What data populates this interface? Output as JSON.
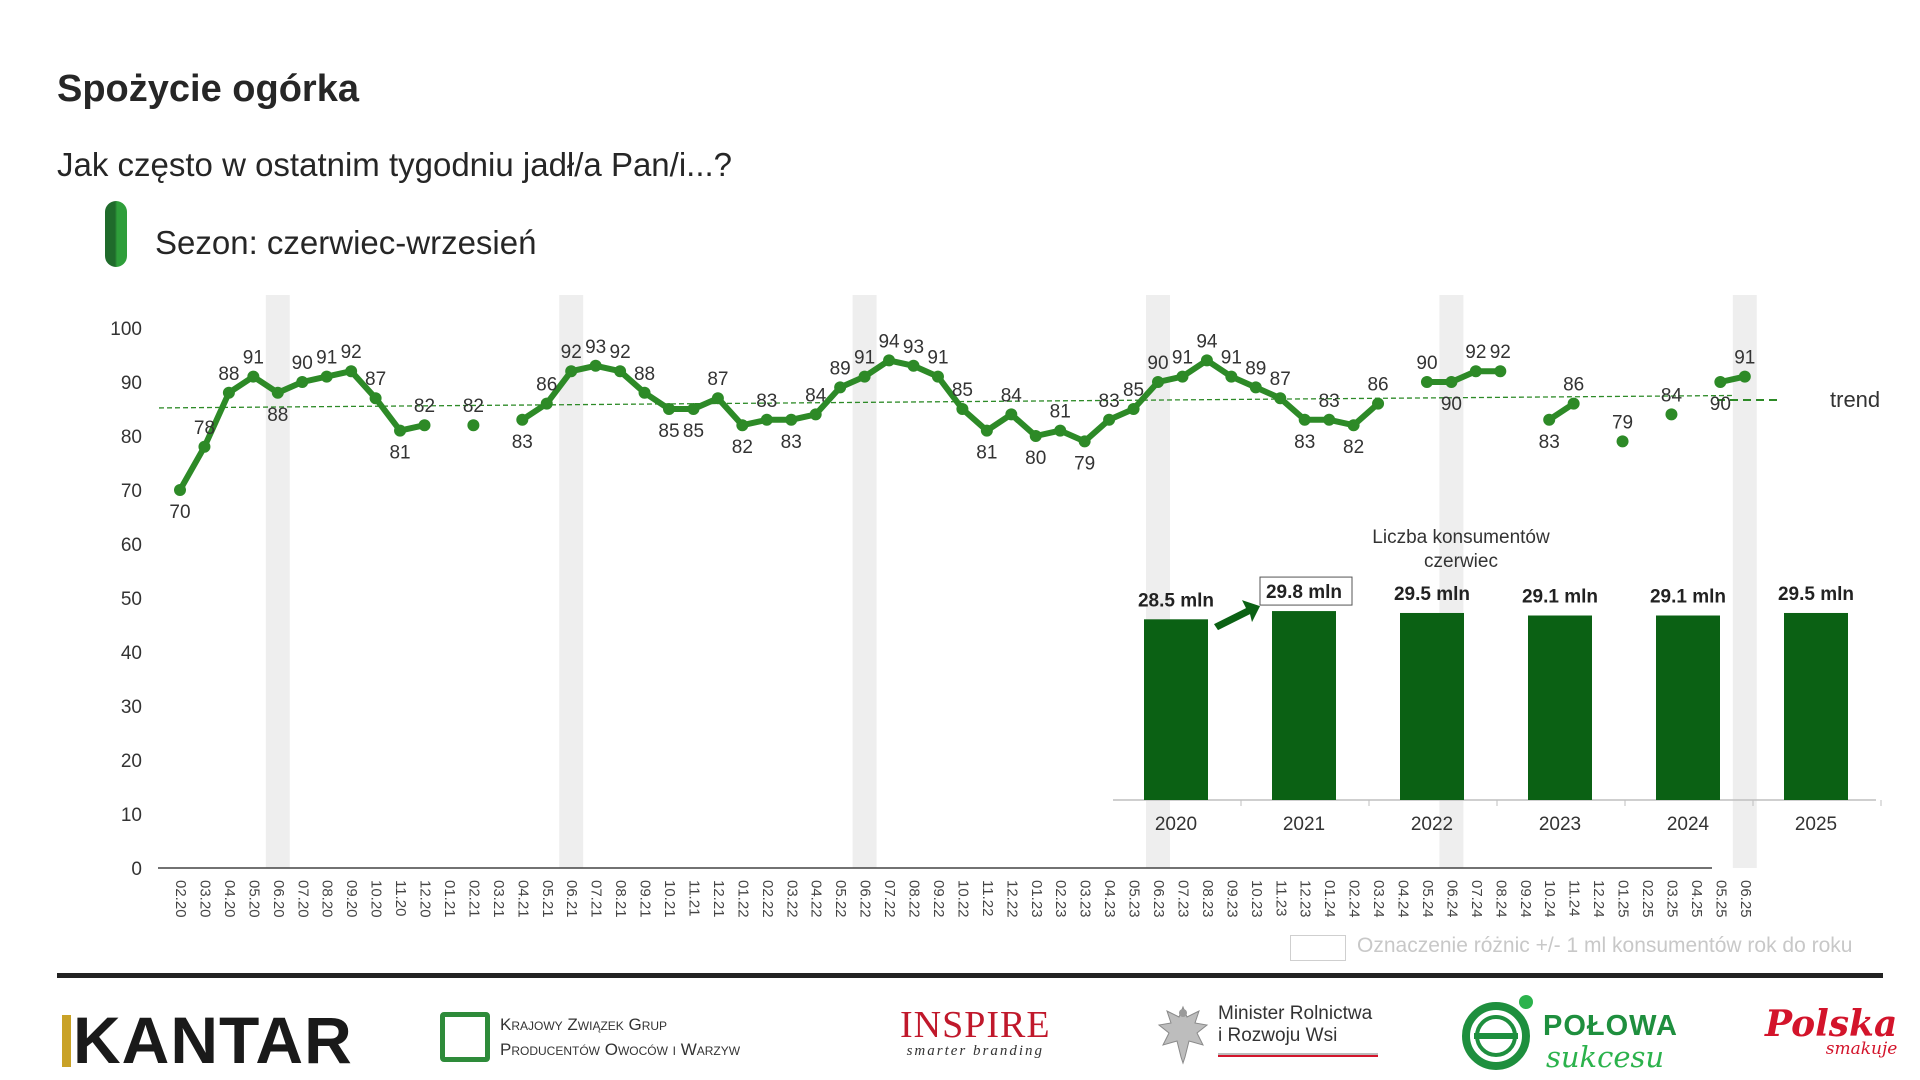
{
  "header": {
    "title": "Spożycie ogórka",
    "subtitle": "Jak często w ostatnim tygodniu jadł/a Pan/i...?",
    "season_label": "Sezon: czerwiec-wrzesień"
  },
  "chart_data": [
    {
      "type": "line",
      "y_ticks": [
        "0",
        "10",
        "20",
        "30",
        "40",
        "50",
        "60",
        "70",
        "80",
        "90",
        "100"
      ],
      "ylim": [
        0,
        100
      ],
      "grid": false,
      "categories": [
        "02.20",
        "03.20",
        "04.20",
        "05.20",
        "06.20",
        "07.20",
        "08.20",
        "09.20",
        "10.20",
        "11.20",
        "12.20",
        "01.21",
        "02.21",
        "03.21",
        "04.21",
        "05.21",
        "06.21",
        "07.21",
        "08.21",
        "09.21",
        "10.21",
        "11.21",
        "12.21",
        "01.22",
        "02.22",
        "03.22",
        "04.22",
        "05.22",
        "06.22",
        "07.22",
        "08.22",
        "09.22",
        "10.22",
        "11.22",
        "12.22",
        "01.23",
        "02.23",
        "03.23",
        "04.23",
        "05.23",
        "06.23",
        "07.23",
        "08.23",
        "09.23",
        "10.23",
        "11.23",
        "12.23",
        "01.24",
        "02.24",
        "03.24",
        "04.24",
        "05.24",
        "06.24",
        "07.24",
        "08.24",
        "09.24",
        "10.24",
        "11.24",
        "12.24",
        "01.25",
        "02.25",
        "03.25",
        "04.25",
        "05.25",
        "06.25"
      ],
      "values": [
        70,
        78,
        88,
        91,
        88,
        90,
        91,
        92,
        87,
        81,
        82,
        null,
        82,
        null,
        83,
        86,
        92,
        93,
        92,
        88,
        85,
        85,
        87,
        82,
        83,
        83,
        84,
        89,
        91,
        94,
        93,
        91,
        85,
        81,
        84,
        80,
        81,
        79,
        83,
        85,
        90,
        91,
        94,
        91,
        89,
        87,
        83,
        83,
        82,
        86,
        null,
        90,
        90,
        92,
        92,
        null,
        83,
        86,
        null,
        79,
        null,
        84,
        null,
        90,
        91
      ],
      "season_shading": [
        "06.20",
        "06.21",
        "06.22",
        "06.23",
        "06.24",
        "06.25"
      ],
      "trend": {
        "label": "trend",
        "start": 85.2,
        "end": 87.5
      },
      "series": [
        {
          "color": "#2d8a27"
        }
      ]
    },
    {
      "type": "bar",
      "title": "Liczba konsumentów\nczerwiec",
      "title_lines": [
        "Liczba konsumentów",
        "czerwiec"
      ],
      "categories": [
        "2020",
        "2021",
        "2022",
        "2023",
        "2024",
        "2025"
      ],
      "values": [
        28.5,
        29.8,
        29.5,
        29.1,
        29.1,
        29.5
      ],
      "value_labels": [
        "28.5 mln",
        "29.8 mln",
        "29.5 mln",
        "29.1 mln",
        "29.1 mln",
        "29.5 mln"
      ],
      "highlighted": [
        "2021"
      ],
      "color": "#0b6114"
    }
  ],
  "legend": {
    "text": "Oznaczenie różnic +/- 1 ml konsumentów rok do roku"
  },
  "logos": {
    "kantar": "KANTAR",
    "kzgpow_line1": "Krajowy Związek Grup",
    "kzgpow_line2": "Producentów Owoców i Warzyw",
    "inspire": "INSPIRE",
    "inspire_tagline": "smarter branding",
    "minister_line1": "Minister Rolnictwa",
    "minister_line2": "i Rozwoju Wsi",
    "polowa_line1": "POŁOWA",
    "polowa_line2": "sukcesu",
    "polska_line1": "Polska",
    "polska_line2": "smakuje"
  }
}
